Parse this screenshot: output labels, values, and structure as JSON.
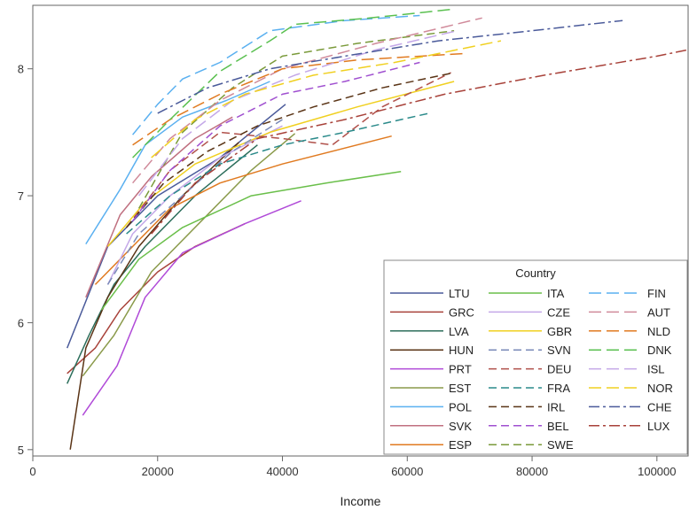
{
  "chart_data": {
    "type": "line",
    "xlabel": "Income",
    "ylabel": "",
    "xlim": [
      0,
      105000
    ],
    "ylim": [
      4.95,
      8.5
    ],
    "x_ticks": [
      0,
      20000,
      40000,
      60000,
      80000,
      100000
    ],
    "x_tick_labels": [
      "0",
      "20000",
      "40000",
      "60000",
      "80000",
      "100000"
    ],
    "y_ticks": [
      5,
      6,
      7,
      8
    ],
    "y_tick_labels": [
      "5",
      "6",
      "7",
      "8"
    ],
    "grid": false,
    "legend": {
      "title": "Country",
      "placement": "bottom-right",
      "columns": 3
    },
    "series": [
      {
        "name": "LTU",
        "color": "#4a5a9a",
        "dash": "solid",
        "x": [
          5500,
          12000,
          20000,
          30000,
          40500
        ],
        "y": [
          5.8,
          6.6,
          7.0,
          7.3,
          7.72
        ]
      },
      {
        "name": "GRC",
        "color": "#a8423a",
        "dash": "solid",
        "x": [
          5500,
          10000,
          14000,
          20000,
          26000,
          34000
        ],
        "y": [
          5.6,
          5.8,
          6.1,
          6.4,
          6.6,
          6.78
        ]
      },
      {
        "name": "LVA",
        "color": "#2c6e5b",
        "dash": "solid",
        "x": [
          5500,
          9000,
          13000,
          18000,
          26000,
          36000
        ],
        "y": [
          5.52,
          5.9,
          6.3,
          6.6,
          7.0,
          7.4
        ]
      },
      {
        "name": "HUN",
        "color": "#5a3416",
        "dash": "solid",
        "x": [
          6000,
          8500,
          12000,
          17000,
          24000,
          33000
        ],
        "y": [
          5.0,
          5.8,
          6.2,
          6.6,
          7.0,
          7.42
        ]
      },
      {
        "name": "PRT",
        "color": "#b04ad8",
        "dash": "solid",
        "x": [
          8000,
          13500,
          18000,
          24000,
          34000,
          43000
        ],
        "y": [
          5.27,
          5.66,
          6.2,
          6.55,
          6.78,
          6.96
        ]
      },
      {
        "name": "EST",
        "color": "#8a9a4a",
        "dash": "solid",
        "x": [
          8000,
          13000,
          19000,
          27000,
          35000,
          42000
        ],
        "y": [
          5.58,
          5.9,
          6.4,
          6.8,
          7.2,
          7.49
        ]
      },
      {
        "name": "POL",
        "color": "#5ab0f0",
        "dash": "solid",
        "x": [
          8500,
          14000,
          18000,
          24000,
          31000,
          38000
        ],
        "y": [
          6.62,
          7.05,
          7.4,
          7.62,
          7.75,
          7.9
        ]
      },
      {
        "name": "SVK",
        "color": "#c07080",
        "dash": "solid",
        "x": [
          8500,
          14000,
          19000,
          26000,
          32000
        ],
        "y": [
          6.2,
          6.85,
          7.15,
          7.45,
          7.62
        ]
      },
      {
        "name": "ESP",
        "color": "#e07a20",
        "dash": "solid",
        "x": [
          10000,
          16000,
          22000,
          30000,
          40000,
          57500
        ],
        "y": [
          6.3,
          6.6,
          6.9,
          7.1,
          7.25,
          7.47
        ]
      },
      {
        "name": "ITA",
        "color": "#6abf4a",
        "dash": "solid",
        "x": [
          11000,
          17000,
          24000,
          35000,
          47000,
          59000
        ],
        "y": [
          6.1,
          6.5,
          6.75,
          7.0,
          7.1,
          7.19
        ]
      },
      {
        "name": "CZE",
        "color": "#c4a8e8",
        "dash": "solid",
        "x": [
          12000,
          16000,
          22000,
          30000,
          40000
        ],
        "y": [
          6.3,
          6.7,
          7.0,
          7.3,
          7.55
        ]
      },
      {
        "name": "GBR",
        "color": "#f0d020",
        "dash": "solid",
        "x": [
          12000,
          18000,
          26000,
          38000,
          52000,
          67500
        ],
        "y": [
          6.6,
          6.95,
          7.25,
          7.5,
          7.7,
          7.9
        ]
      },
      {
        "name": "SVN",
        "color": "#7a8ab8",
        "dash": "dash",
        "x": [
          12000,
          17000,
          24000,
          32000,
          40000
        ],
        "y": [
          6.3,
          6.7,
          7.0,
          7.35,
          7.6
        ]
      },
      {
        "name": "DEU",
        "color": "#b0504a",
        "dash": "dash",
        "x": [
          15000,
          22000,
          30000,
          40000,
          48000,
          56000,
          67000
        ],
        "y": [
          6.75,
          7.2,
          7.5,
          7.45,
          7.4,
          7.7,
          7.97
        ]
      },
      {
        "name": "FRA",
        "color": "#2a8a8a",
        "dash": "dash",
        "x": [
          15000,
          22000,
          30000,
          40000,
          50000,
          63500
        ],
        "y": [
          6.7,
          7.0,
          7.25,
          7.4,
          7.5,
          7.65
        ]
      },
      {
        "name": "IRL",
        "color": "#5a3416",
        "dash": "dash",
        "x": [
          15000,
          21000,
          28000,
          36000,
          45000,
          56000,
          67500
        ],
        "y": [
          6.75,
          7.1,
          7.35,
          7.55,
          7.7,
          7.85,
          7.97
        ]
      },
      {
        "name": "BEL",
        "color": "#a050d0",
        "dash": "dash",
        "x": [
          16000,
          22000,
          30000,
          40000,
          50000,
          62000
        ],
        "y": [
          6.8,
          7.2,
          7.55,
          7.8,
          7.9,
          8.05
        ]
      },
      {
        "name": "SWE",
        "color": "#7a9a3a",
        "dash": "dash",
        "x": [
          17000,
          24000,
          32000,
          40000,
          52000,
          67500
        ],
        "y": [
          6.9,
          7.5,
          7.85,
          8.1,
          8.2,
          8.3
        ]
      },
      {
        "name": "FIN",
        "color": "#5ab0f0",
        "dash": "longdash",
        "x": [
          16000,
          20000,
          24000,
          30000,
          38000,
          50000,
          62000
        ],
        "y": [
          7.48,
          7.72,
          7.92,
          8.05,
          8.3,
          8.38,
          8.42
        ]
      },
      {
        "name": "AUT",
        "color": "#d08a9a",
        "dash": "longdash",
        "x": [
          16000,
          22000,
          30000,
          40000,
          55000,
          72000
        ],
        "y": [
          7.1,
          7.45,
          7.75,
          8.0,
          8.2,
          8.4
        ]
      },
      {
        "name": "NLD",
        "color": "#e07a20",
        "dash": "longdash",
        "x": [
          16000,
          22000,
          30000,
          40000,
          52000,
          69000
        ],
        "y": [
          7.4,
          7.6,
          7.8,
          8.0,
          8.07,
          8.12
        ]
      },
      {
        "name": "DNK",
        "color": "#5ac050",
        "dash": "longdash",
        "x": [
          16000,
          22000,
          30000,
          38000,
          42000,
          54000,
          67500
        ],
        "y": [
          7.3,
          7.6,
          7.98,
          8.22,
          8.35,
          8.4,
          8.47
        ]
      },
      {
        "name": "ISL",
        "color": "#c4a8e8",
        "dash": "longdash",
        "x": [
          17000,
          24000,
          32000,
          42000,
          55000,
          68000
        ],
        "y": [
          7.0,
          7.45,
          7.75,
          7.95,
          8.15,
          8.3
        ]
      },
      {
        "name": "NOR",
        "color": "#f0d020",
        "dash": "longdash",
        "x": [
          19000,
          26000,
          34000,
          45000,
          58000,
          75000
        ],
        "y": [
          7.3,
          7.6,
          7.8,
          7.95,
          8.05,
          8.22
        ]
      },
      {
        "name": "CHE",
        "color": "#4a5a9a",
        "dash": "dashdot",
        "x": [
          20000,
          28000,
          38000,
          50000,
          65000,
          80000,
          94500
        ],
        "y": [
          7.65,
          7.85,
          8.0,
          8.1,
          8.22,
          8.3,
          8.38
        ]
      },
      {
        "name": "LUX",
        "color": "#a8423a",
        "dash": "dashdot",
        "x": [
          19000,
          26000,
          36000,
          50000,
          66000,
          82000,
          100000,
          105000
        ],
        "y": [
          6.7,
          7.1,
          7.45,
          7.6,
          7.8,
          7.95,
          8.1,
          8.15
        ]
      }
    ]
  }
}
